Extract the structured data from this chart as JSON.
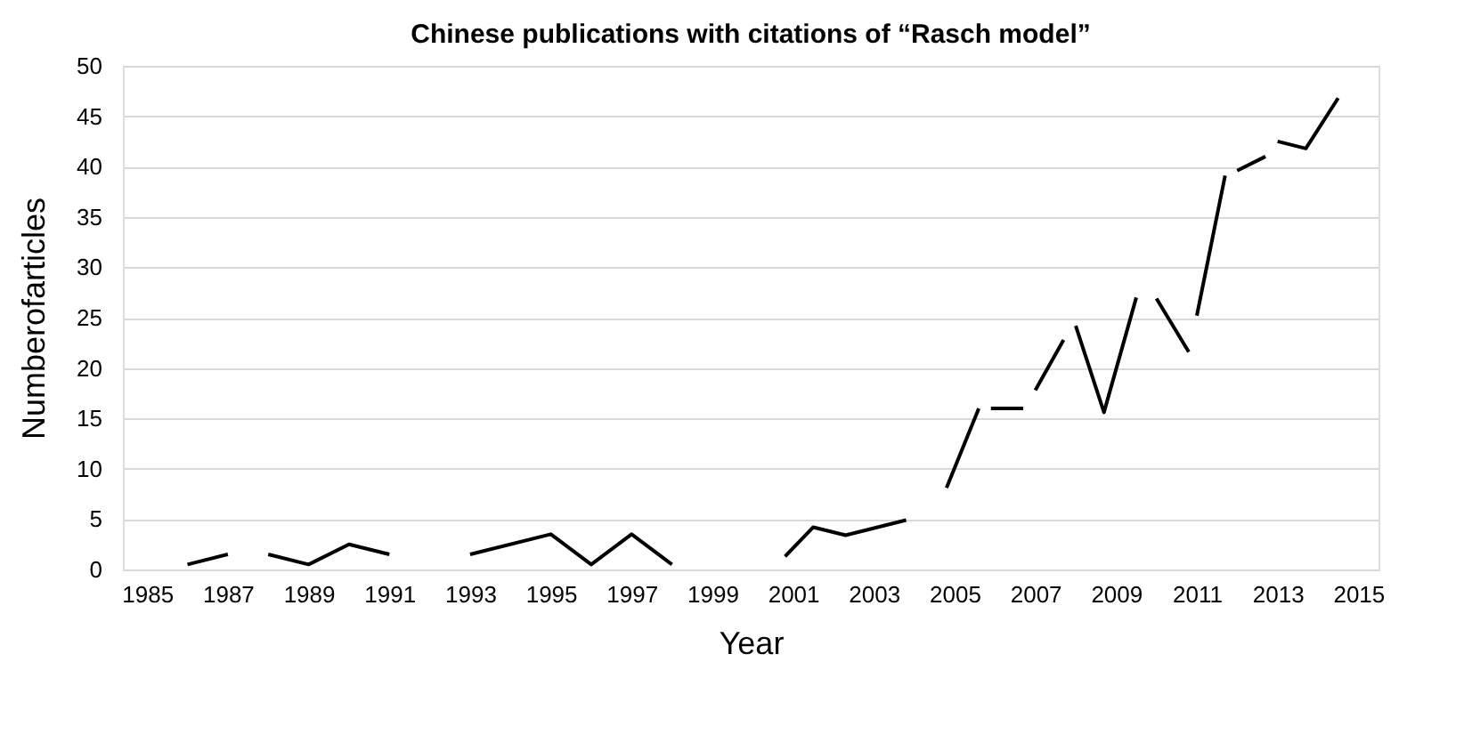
{
  "chart_data": {
    "type": "line",
    "title": "Chinese publications with citations of “Rasch model”",
    "xlabel": "Year",
    "ylabel": "Numberofarticles",
    "x": [
      1986.0,
      1987.0,
      1987.5,
      1988.0,
      1989.0,
      1990.0,
      1991.0,
      1992.0,
      1993.0,
      1995.0,
      1996.0,
      1997.0,
      1998.0,
      1999.4,
      2000.8,
      2001.5,
      2002.3,
      2003.8,
      2004.3,
      2004.8,
      2005.6,
      2005.8,
      2005.9,
      2006.7,
      2006.85,
      2007.0,
      2007.7,
      2007.85,
      2008.0,
      2008.7,
      2009.5,
      2009.75,
      2010.0,
      2010.8,
      2010.9,
      2011.0,
      2011.7,
      2011.85,
      2012.0,
      2012.7,
      2012.85,
      2013.0,
      2013.7,
      2014.5
    ],
    "series": [
      {
        "color": "#000000",
        "values": [
          0.5,
          1.5,
          null,
          1.5,
          0.5,
          2.5,
          1.5,
          null,
          1.5,
          3.5,
          0.5,
          3.5,
          0.5,
          null,
          1.3,
          4.2,
          3.4,
          4.9,
          null,
          8.1,
          16,
          null,
          16,
          16,
          null,
          17.8,
          22.8,
          null,
          24.2,
          15.6,
          27,
          null,
          26.9,
          21.6,
          null,
          25.2,
          39.1,
          null,
          39.6,
          41,
          null,
          42.5,
          41.8,
          46.8
        ]
      }
    ],
    "xlim": [
      1984.4,
      2015.5
    ],
    "xticks": [
      1985,
      1987,
      1989,
      1991,
      1993,
      1995,
      1997,
      1999,
      2001,
      2003,
      2005,
      2007,
      2009,
      2011,
      2013,
      2015
    ],
    "ylim": [
      0,
      50
    ],
    "yticks": [
      0,
      5,
      10,
      15,
      20,
      25,
      30,
      35,
      40,
      45,
      50
    ],
    "grid": "y",
    "marker": "none",
    "line_style": "solid"
  }
}
